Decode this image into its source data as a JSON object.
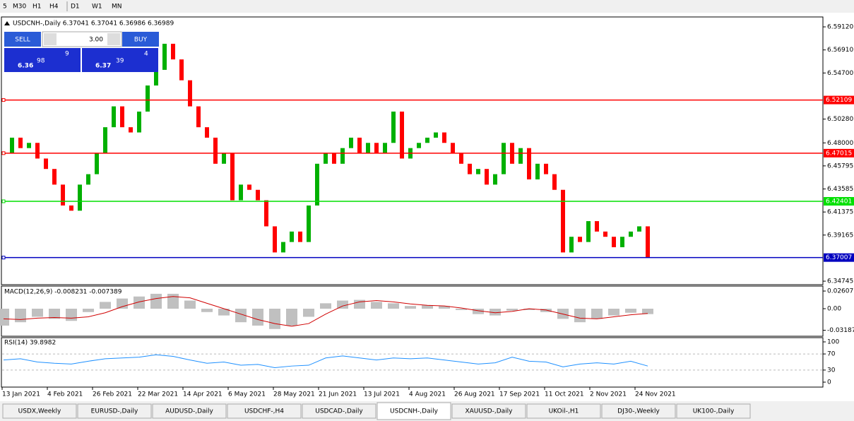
{
  "toolbar": [
    "5",
    "M30",
    "H1",
    "H4",
    "D1",
    "W1",
    "MN"
  ],
  "trade_panel": {
    "sell": "SELL",
    "buy": "BUY",
    "volume": "3.00",
    "sell_big": "6.36",
    "sell_mid": "98",
    "sell_sup": "9",
    "buy_big": "6.37",
    "buy_mid": "39",
    "buy_sup": "4"
  },
  "chart": {
    "type": "candlestick",
    "label": "USDCNH-,Daily  6.37041 6.37041 6.36986 6.36989",
    "ylim": [
      6.3441,
      6.6007
    ],
    "yticks": [
      {
        "value": 6.5912,
        "label": "6.59120"
      },
      {
        "value": 6.5691,
        "label": "6.56910"
      },
      {
        "value": 6.547,
        "label": "6.54700"
      },
      {
        "value": 6.5028,
        "label": "6.50280"
      },
      {
        "value": 6.48,
        "label": "6.48000"
      },
      6.45795,
      6.43585,
      6.41375,
      6.39165,
      6.34745
    ],
    "levels": [
      {
        "value": 6.52109,
        "color": "#ff0000"
      },
      {
        "value": 6.47015,
        "color": "#ff0000"
      },
      {
        "value": 6.42401,
        "color": "#00e000"
      },
      {
        "value": 6.37007,
        "color": "#0000c0"
      }
    ],
    "up_color": "#00b000",
    "down_color": "#ff0000",
    "closes": [
      6.47,
      6.485,
      6.475,
      6.48,
      6.465,
      6.455,
      6.44,
      6.42,
      6.415,
      6.44,
      6.45,
      6.47,
      6.495,
      6.515,
      6.495,
      6.49,
      6.51,
      6.535,
      6.55,
      6.575,
      6.56,
      6.54,
      6.515,
      6.495,
      6.485,
      6.46,
      6.47,
      6.425,
      6.44,
      6.435,
      6.425,
      6.4,
      6.375,
      6.385,
      6.395,
      6.385,
      6.42,
      6.46,
      6.47,
      6.46,
      6.475,
      6.485,
      6.47,
      6.48,
      6.47,
      6.48,
      6.51,
      6.465,
      6.475,
      6.48,
      6.485,
      6.49,
      6.48,
      6.47,
      6.46,
      6.45,
      6.455,
      6.44,
      6.45,
      6.48,
      6.46,
      6.475,
      6.445,
      6.46,
      6.45,
      6.435,
      6.375,
      6.39,
      6.385,
      6.405,
      6.395,
      6.39,
      6.38,
      6.39,
      6.395,
      6.4,
      6.37
    ],
    "x_labels": [
      "13 Jan 2021",
      "4 Feb 2021",
      "26 Feb 2021",
      "22 Mar 2021",
      "14 Apr 2021",
      "6 May 2021",
      "28 May 2021",
      "21 Jun 2021",
      "13 Jul 2021",
      "4 Aug 2021",
      "26 Aug 2021",
      "17 Sep 2021",
      "11 Oct 2021",
      "2 Nov 2021",
      "24 Nov 2021"
    ]
  },
  "macd": {
    "label": "MACD(12,26,9) -0.008231 -0.007389",
    "ylim": [
      -0.0407,
      0.0334
    ],
    "yticks": [
      0.02607,
      {
        "value": 0,
        "label": "0.00"
      },
      -0.031872
    ],
    "histogram": [
      -0.025,
      -0.02,
      -0.012,
      -0.015,
      -0.018,
      -0.005,
      0.01,
      0.015,
      0.018,
      0.022,
      0.022,
      0.012,
      -0.005,
      -0.01,
      -0.02,
      -0.025,
      -0.03,
      -0.025,
      -0.012,
      0.008,
      0.012,
      0.013,
      0.01,
      0.008,
      0.004,
      0.005,
      0.004,
      -0.002,
      -0.008,
      -0.01,
      -0.003,
      -0.002,
      -0.005,
      -0.015,
      -0.02,
      -0.015,
      -0.01,
      -0.006,
      -0.008
    ],
    "signal": [
      -0.015,
      -0.016,
      -0.014,
      -0.013,
      -0.014,
      -0.012,
      -0.006,
      0.003,
      0.01,
      0.015,
      0.018,
      0.016,
      0.008,
      0.0,
      -0.008,
      -0.016,
      -0.022,
      -0.026,
      -0.022,
      -0.008,
      0.004,
      0.01,
      0.012,
      0.01,
      0.007,
      0.005,
      0.004,
      0.001,
      -0.003,
      -0.006,
      -0.004,
      0.0,
      -0.002,
      -0.008,
      -0.014,
      -0.015,
      -0.012,
      -0.009,
      -0.007
    ]
  },
  "rsi": {
    "label": "RSI(14) 39.8982",
    "ylim": [
      -12.3,
      110.5
    ],
    "yticks": [
      100,
      70,
      30,
      0
    ],
    "levels": [
      70,
      30
    ],
    "values": [
      55,
      58,
      50,
      47,
      45,
      52,
      58,
      60,
      62,
      68,
      64,
      55,
      47,
      50,
      42,
      44,
      36,
      40,
      42,
      60,
      65,
      60,
      55,
      60,
      58,
      60,
      55,
      50,
      45,
      48,
      62,
      52,
      50,
      38,
      45,
      48,
      45,
      52,
      40
    ]
  },
  "tabs": {
    "items": [
      "USDX,Weekly",
      "EURUSD-,Daily",
      "AUDUSD-,Daily",
      "USDCHF-,H4",
      "USDCAD-,Daily",
      "USDCNH-,Daily",
      "XAUUSD-,Daily",
      "UKOil-,H1",
      "DJ30-,Weekly",
      "UK100-,Daily"
    ],
    "active": 5
  }
}
